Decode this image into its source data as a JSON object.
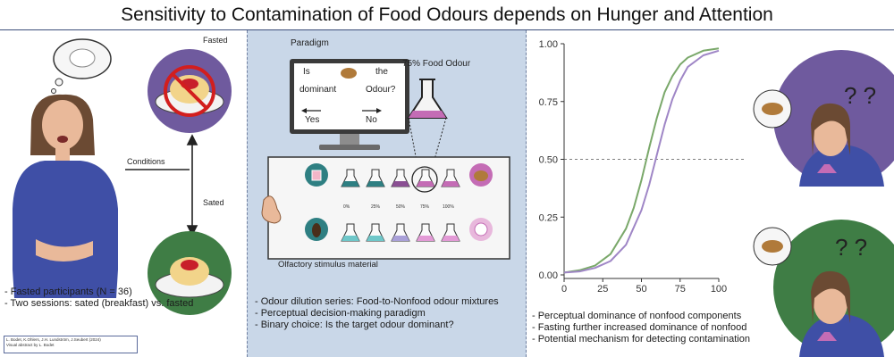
{
  "title": "Sensitivity to Contamination of Food Odours depends on Hunger and Attention",
  "left": {
    "fasted_label": "Fasted",
    "sated_label": "Sated",
    "conditions_label": "Conditions",
    "bullets": [
      "- Fasted participants (N = 36)",
      "- Two sessions: sated (breakfast) vs. fasted"
    ],
    "citation_lines": [
      "L. Bodet, K.Ohlers, J.H. Lundström, J.Seubert (2024)",
      "Visual abstract by L. Bodet"
    ]
  },
  "middle": {
    "paradigm_label": "Paradigm",
    "screen_question_left": [
      "Is",
      "dominant"
    ],
    "screen_question_right": [
      "the",
      "Odour?"
    ],
    "yes_label": "Yes",
    "no_label": "No",
    "food_odour_label": "75% Food Odour",
    "percentages": [
      "0%",
      "25%",
      "50%",
      "75%",
      "100%"
    ],
    "stimulus_label": "Olfactory stimulus material",
    "bullets": [
      "- Odour dilution series: Food-to-Nonfood odour mixtures",
      "- Perceptual decision-making paradigm",
      "- Binary choice: Is the target odour dominant?"
    ]
  },
  "right": {
    "bullets": [
      "- Perceptual dominance of nonfood components",
      "- Fasting further increased dominance of nonfood",
      "- Potential mechanism for detecting contamination"
    ]
  },
  "chart_data": {
    "type": "line",
    "xlim": [
      0,
      100
    ],
    "ylim": [
      0,
      1
    ],
    "x_ticks": [
      "0",
      "25",
      "50",
      "75",
      "100"
    ],
    "y_ticks": [
      "0.00",
      "0.25",
      "0.50",
      "0.75",
      "1.00"
    ],
    "reference_line_y": 0.5,
    "series": [
      {
        "color": "#7aa86a",
        "x": [
          0,
          10,
          20,
          30,
          40,
          45,
          50,
          55,
          60,
          65,
          70,
          75,
          80,
          90,
          100
        ],
        "y": [
          0.01,
          0.02,
          0.04,
          0.09,
          0.2,
          0.29,
          0.41,
          0.55,
          0.68,
          0.79,
          0.86,
          0.91,
          0.94,
          0.97,
          0.98
        ]
      },
      {
        "color": "#9f86c6",
        "x": [
          0,
          10,
          20,
          30,
          40,
          50,
          55,
          60,
          65,
          70,
          75,
          80,
          90,
          100
        ],
        "y": [
          0.01,
          0.015,
          0.03,
          0.06,
          0.13,
          0.28,
          0.39,
          0.52,
          0.65,
          0.76,
          0.84,
          0.9,
          0.95,
          0.97
        ]
      }
    ]
  },
  "colors": {
    "border": "#3b4d7a",
    "middle_bg": "#c9d7e8",
    "fasted_circle": "#6f5a9e",
    "sated_circle": "#3f7d45",
    "food_flask": "#c46cb5",
    "nonfood_flask": "#6ec7c9"
  }
}
